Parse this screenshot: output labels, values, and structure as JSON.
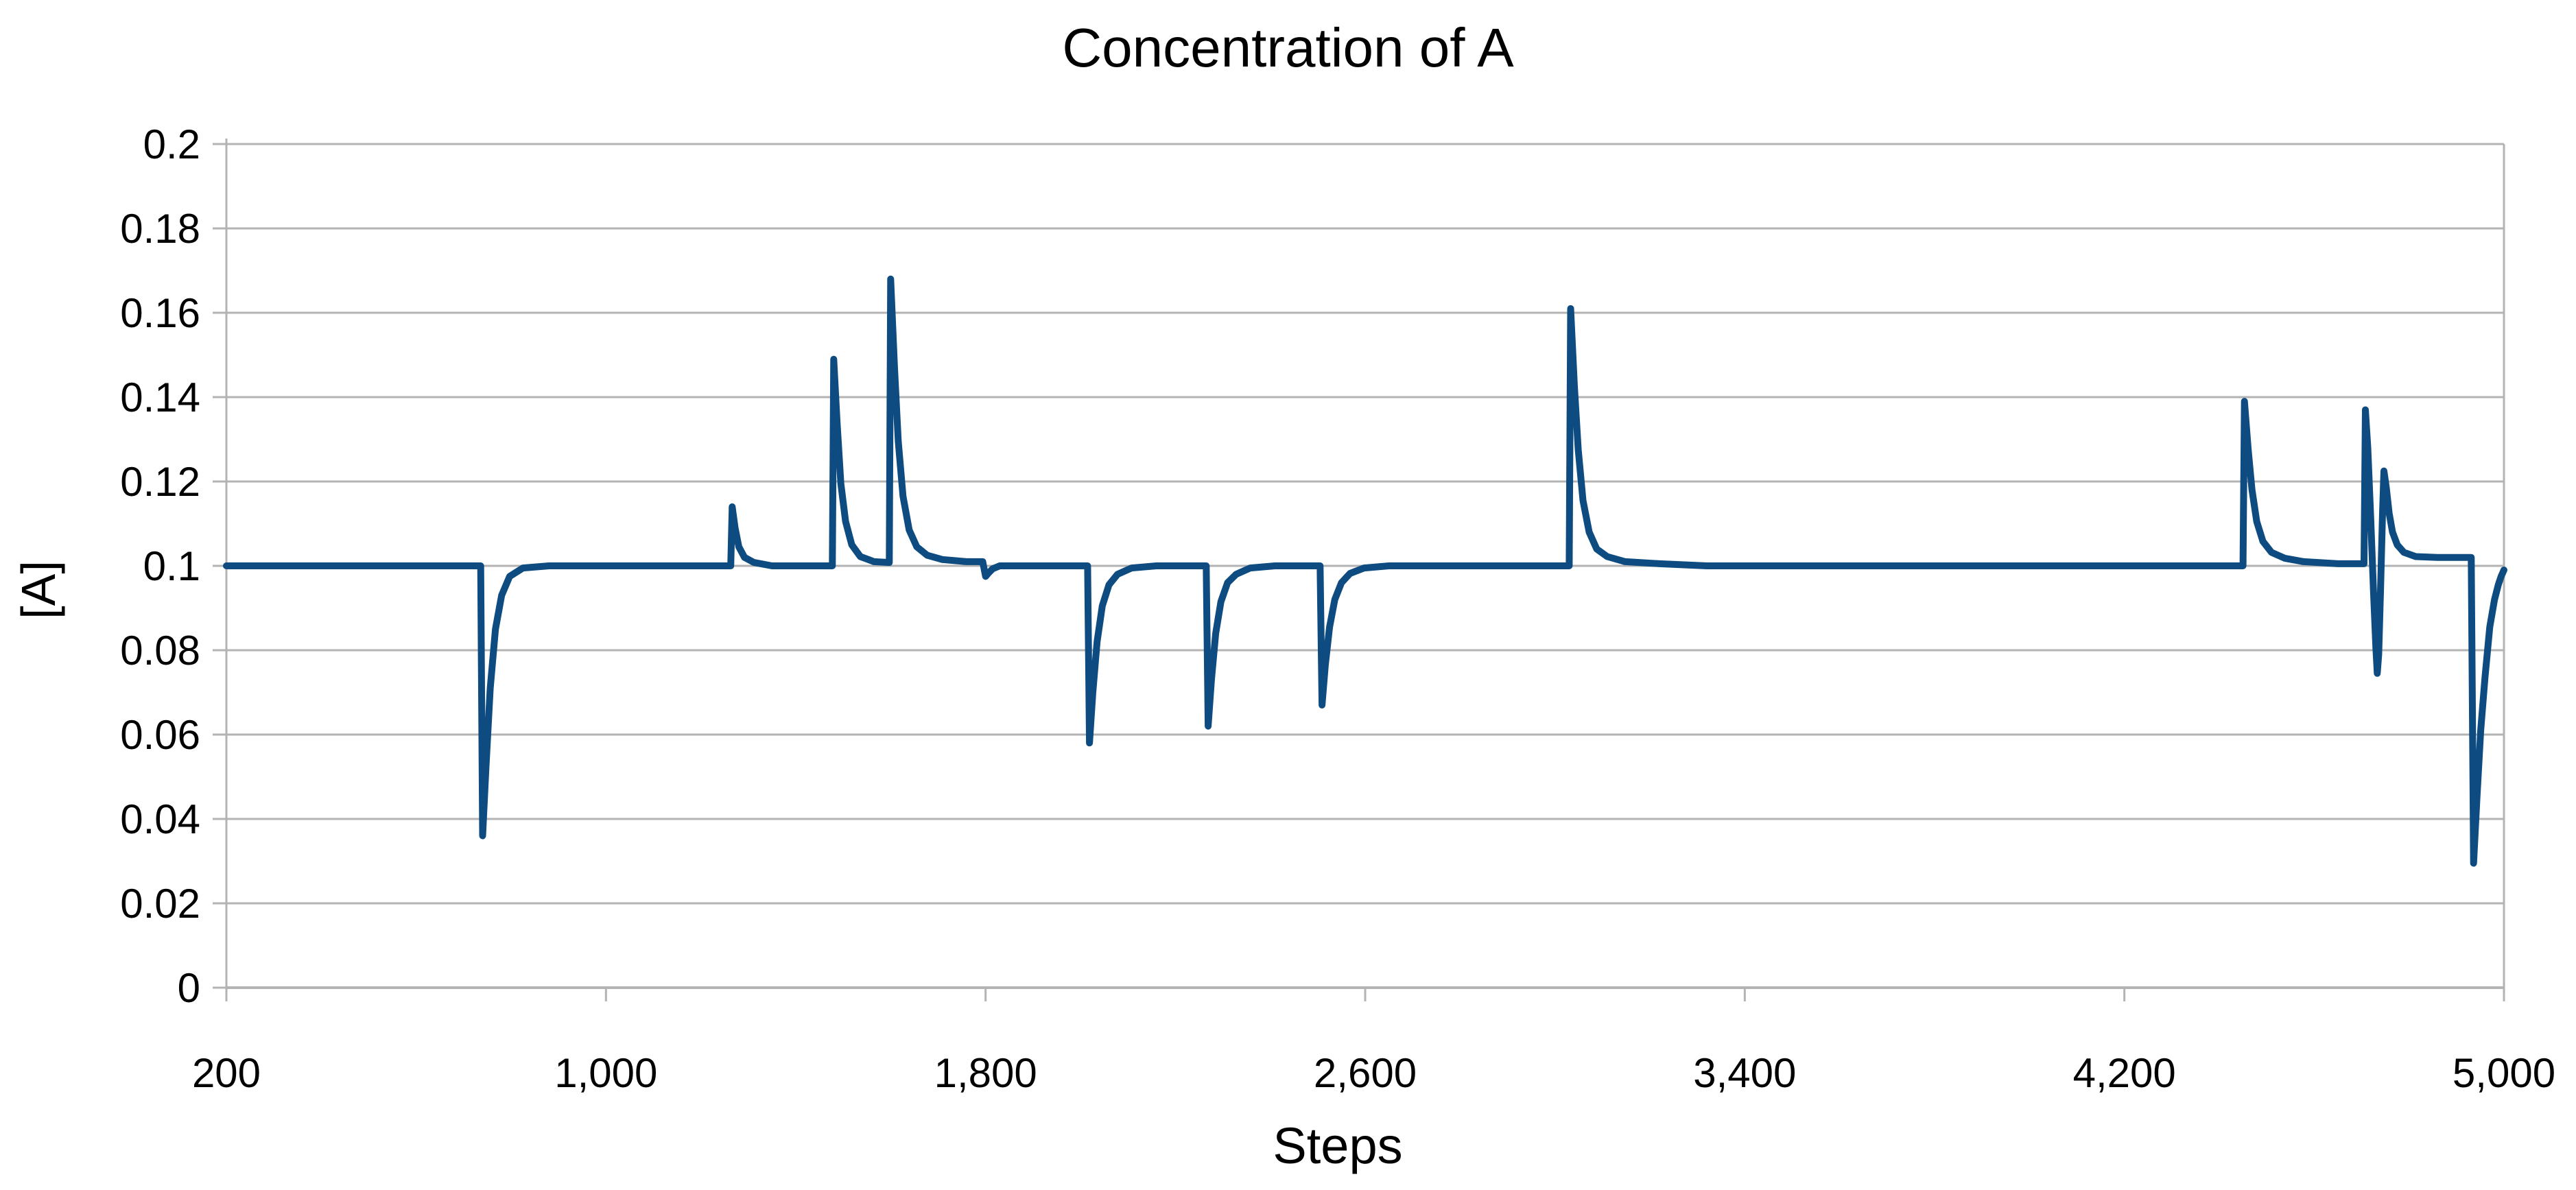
{
  "chart": {
    "title": "Concentration of A",
    "x_axis": {
      "title": "Steps"
    },
    "y_axis": {
      "title": "[A]"
    }
  },
  "colors": {
    "series": "#0d4b80",
    "grid": "#b3b3b3",
    "axis": "#b3b3b3",
    "text": "#000000",
    "background": "#ffffff"
  },
  "chart_data": {
    "type": "line",
    "title": "Concentration of A",
    "xlabel": "Steps",
    "ylabel": "[A]",
    "xlim": [
      200,
      5000
    ],
    "ylim": [
      0,
      0.2
    ],
    "grid": "horizontal",
    "legend": "none",
    "baseline_value": 0.1,
    "x_ticks": [
      {
        "value": 200,
        "label": "200"
      },
      {
        "value": 1000,
        "label": "1,000"
      },
      {
        "value": 1800,
        "label": "1,800"
      },
      {
        "value": 2600,
        "label": "2,600"
      },
      {
        "value": 3400,
        "label": "3,400"
      },
      {
        "value": 4200,
        "label": "4,200"
      },
      {
        "value": 5000,
        "label": "5,000"
      }
    ],
    "y_ticks": [
      {
        "value": 0,
        "label": "0"
      },
      {
        "value": 0.02,
        "label": "0.02"
      },
      {
        "value": 0.04,
        "label": "0.04"
      },
      {
        "value": 0.06,
        "label": "0.06"
      },
      {
        "value": 0.08,
        "label": "0.08"
      },
      {
        "value": 0.1,
        "label": "0.1"
      },
      {
        "value": 0.12,
        "label": "0.12"
      },
      {
        "value": 0.14,
        "label": "0.14"
      },
      {
        "value": 0.16,
        "label": "0.16"
      },
      {
        "value": 0.18,
        "label": "0.18"
      },
      {
        "value": 0.2,
        "label": "0.2"
      }
    ],
    "spikes": [
      {
        "step": 740,
        "value": 0.036,
        "direction": "down"
      },
      {
        "step": 1266,
        "value": 0.114,
        "direction": "up"
      },
      {
        "step": 1480,
        "value": 0.149,
        "direction": "up"
      },
      {
        "step": 1600,
        "value": 0.168,
        "direction": "up"
      },
      {
        "step": 1800,
        "value": 0.097,
        "direction": "down-small"
      },
      {
        "step": 2019,
        "value": 0.058,
        "direction": "down"
      },
      {
        "step": 2269,
        "value": 0.062,
        "direction": "down"
      },
      {
        "step": 2509,
        "value": 0.067,
        "direction": "down"
      },
      {
        "step": 3033,
        "value": 0.161,
        "direction": "up"
      },
      {
        "step": 4453,
        "value": 0.139,
        "direction": "up"
      },
      {
        "step": 4708,
        "value": 0.137,
        "direction": "up"
      },
      {
        "step": 4733,
        "value": 0.074,
        "direction": "down"
      },
      {
        "step": 4747,
        "value": 0.122,
        "direction": "up"
      },
      {
        "step": 4936,
        "value": 0.03,
        "direction": "down"
      }
    ],
    "series": [
      {
        "name": "[A]",
        "color": "#0d4b80",
        "points": [
          [
            200,
            0.1
          ],
          [
            736,
            0.1
          ],
          [
            740,
            0.036
          ],
          [
            747,
            0.052
          ],
          [
            756,
            0.071
          ],
          [
            767,
            0.085
          ],
          [
            780,
            0.093
          ],
          [
            797,
            0.0975
          ],
          [
            825,
            0.0995
          ],
          [
            880,
            0.1
          ],
          [
            1263,
            0.1
          ],
          [
            1266,
            0.114
          ],
          [
            1272,
            0.109
          ],
          [
            1280,
            0.1045
          ],
          [
            1292,
            0.102
          ],
          [
            1312,
            0.1008
          ],
          [
            1350,
            0.1
          ],
          [
            1477,
            0.1
          ],
          [
            1480,
            0.149
          ],
          [
            1487,
            0.134
          ],
          [
            1495,
            0.1195
          ],
          [
            1505,
            0.1105
          ],
          [
            1518,
            0.105
          ],
          [
            1536,
            0.1022
          ],
          [
            1565,
            0.101
          ],
          [
            1597,
            0.1008
          ],
          [
            1600,
            0.168
          ],
          [
            1608,
            0.147
          ],
          [
            1616,
            0.1295
          ],
          [
            1626,
            0.1165
          ],
          [
            1639,
            0.1085
          ],
          [
            1655,
            0.1045
          ],
          [
            1677,
            0.1025
          ],
          [
            1709,
            0.1015
          ],
          [
            1760,
            0.101
          ],
          [
            1794,
            0.101
          ],
          [
            1800,
            0.0975
          ],
          [
            1806,
            0.0983
          ],
          [
            1815,
            0.0993
          ],
          [
            1830,
            0.1
          ],
          [
            2015,
            0.1
          ],
          [
            2019,
            0.058
          ],
          [
            2026,
            0.07
          ],
          [
            2035,
            0.082
          ],
          [
            2046,
            0.0905
          ],
          [
            2060,
            0.0955
          ],
          [
            2078,
            0.098
          ],
          [
            2108,
            0.0995
          ],
          [
            2160,
            0.1
          ],
          [
            2265,
            0.1
          ],
          [
            2269,
            0.062
          ],
          [
            2276,
            0.073
          ],
          [
            2285,
            0.084
          ],
          [
            2296,
            0.0915
          ],
          [
            2310,
            0.096
          ],
          [
            2328,
            0.098
          ],
          [
            2358,
            0.0995
          ],
          [
            2410,
            0.1
          ],
          [
            2505,
            0.1
          ],
          [
            2509,
            0.067
          ],
          [
            2516,
            0.0765
          ],
          [
            2525,
            0.0855
          ],
          [
            2536,
            0.092
          ],
          [
            2550,
            0.096
          ],
          [
            2568,
            0.0982
          ],
          [
            2598,
            0.0995
          ],
          [
            2650,
            0.1
          ],
          [
            3030,
            0.1
          ],
          [
            3033,
            0.161
          ],
          [
            3041,
            0.1425
          ],
          [
            3049,
            0.1275
          ],
          [
            3059,
            0.1155
          ],
          [
            3072,
            0.108
          ],
          [
            3088,
            0.104
          ],
          [
            3110,
            0.1022
          ],
          [
            3148,
            0.101
          ],
          [
            3220,
            0.1005
          ],
          [
            3320,
            0.1
          ],
          [
            4450,
            0.1
          ],
          [
            4453,
            0.139
          ],
          [
            4461,
            0.1275
          ],
          [
            4469,
            0.118
          ],
          [
            4479,
            0.1105
          ],
          [
            4492,
            0.1058
          ],
          [
            4510,
            0.1032
          ],
          [
            4538,
            0.1018
          ],
          [
            4578,
            0.101
          ],
          [
            4650,
            0.1005
          ],
          [
            4705,
            0.1005
          ],
          [
            4708,
            0.137
          ],
          [
            4713,
            0.128
          ],
          [
            4719,
            0.112
          ],
          [
            4725,
            0.094
          ],
          [
            4730,
            0.0805
          ],
          [
            4733,
            0.0745
          ],
          [
            4736,
            0.079
          ],
          [
            4740,
            0.095
          ],
          [
            4744,
            0.112
          ],
          [
            4747,
            0.1225
          ],
          [
            4752,
            0.1185
          ],
          [
            4758,
            0.1125
          ],
          [
            4765,
            0.108
          ],
          [
            4775,
            0.105
          ],
          [
            4789,
            0.1032
          ],
          [
            4814,
            0.1022
          ],
          [
            4860,
            0.102
          ],
          [
            4931,
            0.102
          ],
          [
            4936,
            0.0295
          ],
          [
            4943,
            0.045
          ],
          [
            4951,
            0.061
          ],
          [
            4960,
            0.0735
          ],
          [
            4970,
            0.0855
          ],
          [
            4980,
            0.092
          ],
          [
            4988,
            0.0955
          ],
          [
            4994,
            0.0975
          ],
          [
            5000,
            0.099
          ]
        ]
      }
    ]
  }
}
